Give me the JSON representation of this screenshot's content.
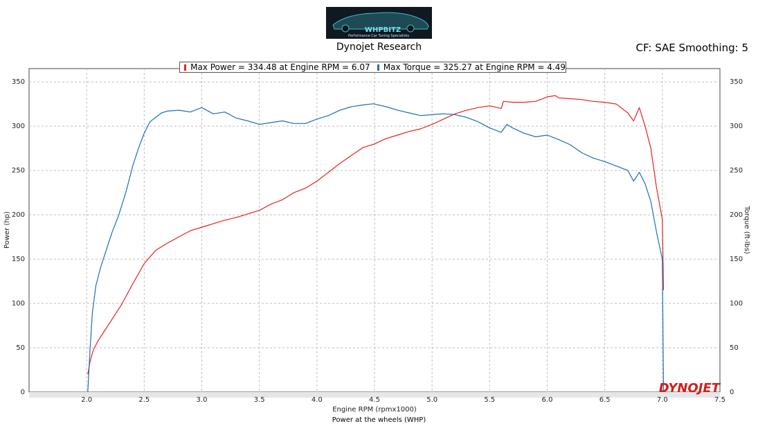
{
  "header": {
    "title": "Dynojet Research",
    "cf_text": "CF: SAE Smoothing: 5",
    "logo_text": "WHPBITZ",
    "logo_tagline": "Performance Car Tuning Specialists"
  },
  "footer": {
    "caption": "Power at the wheels (WHP)",
    "brand": "DYNOJET"
  },
  "colors": {
    "power": "#e8201e",
    "torque": "#1a6fb5",
    "grid": "#bdbdbd",
    "plot_bg": "#ffffff"
  },
  "chart_data": {
    "type": "line",
    "xlabel": "Engine RPM (rpmx1000)",
    "ylabel": "Power (hp)",
    "y2label": "Torque (ft-lbs)",
    "xlim": [
      1.5,
      7.5
    ],
    "ylim": [
      0,
      365
    ],
    "y2lim": [
      0,
      365
    ],
    "xticks": [
      "2.0",
      "2.5",
      "3.0",
      "3.5",
      "4.0",
      "4.5",
      "5.0",
      "5.5",
      "6.0",
      "6.5",
      "7.0",
      "7.5"
    ],
    "yticks": [
      "0",
      "50",
      "100",
      "150",
      "200",
      "250",
      "300",
      "350"
    ],
    "grid": true,
    "legend": [
      {
        "text": "Max Power = 334.48 at Engine RPM = 6.07"
      },
      {
        "text": "Max Torque = 325.27 at Engine RPM = 4.49"
      }
    ],
    "series": [
      {
        "x": [
          2.01,
          2.03,
          2.06,
          2.1,
          2.15,
          2.2,
          2.3,
          2.4,
          2.5,
          2.6,
          2.7,
          2.8,
          2.9,
          3.0,
          3.1,
          3.2,
          3.3,
          3.4,
          3.5,
          3.6,
          3.7,
          3.8,
          3.9,
          4.0,
          4.1,
          4.2,
          4.3,
          4.4,
          4.5,
          4.6,
          4.7,
          4.8,
          4.9,
          5.0,
          5.1,
          5.2,
          5.3,
          5.4,
          5.5,
          5.6,
          5.62,
          5.7,
          5.8,
          5.9,
          6.0,
          6.07,
          6.1,
          6.2,
          6.3,
          6.4,
          6.5,
          6.6,
          6.7,
          6.75,
          6.8,
          6.85,
          6.9,
          6.95,
          7.0,
          7.01
        ],
        "values": [
          20,
          35,
          48,
          58,
          68,
          78,
          98,
          122,
          145,
          160,
          168,
          175,
          182,
          186,
          190,
          194,
          197,
          201,
          205,
          212,
          217,
          225,
          230,
          238,
          248,
          258,
          267,
          276,
          280,
          286,
          290,
          294,
          297,
          302,
          308,
          314,
          318,
          321,
          323,
          320,
          328,
          327,
          327,
          328,
          333,
          334.48,
          332,
          331,
          330,
          328,
          327,
          325,
          315,
          306,
          321,
          300,
          275,
          230,
          195,
          115
        ]
      },
      {
        "x": [
          2.01,
          2.03,
          2.05,
          2.08,
          2.12,
          2.17,
          2.22,
          2.28,
          2.34,
          2.4,
          2.45,
          2.5,
          2.55,
          2.6,
          2.65,
          2.7,
          2.8,
          2.9,
          3.0,
          3.1,
          3.2,
          3.3,
          3.4,
          3.5,
          3.6,
          3.7,
          3.8,
          3.9,
          4.0,
          4.1,
          4.2,
          4.3,
          4.4,
          4.49,
          4.6,
          4.7,
          4.8,
          4.9,
          5.0,
          5.1,
          5.2,
          5.3,
          5.4,
          5.5,
          5.6,
          5.65,
          5.7,
          5.8,
          5.9,
          6.0,
          6.1,
          6.2,
          6.3,
          6.4,
          6.5,
          6.6,
          6.7,
          6.75,
          6.8,
          6.85,
          6.9,
          6.95,
          7.0,
          7.01
        ],
        "values": [
          0,
          50,
          90,
          120,
          140,
          160,
          180,
          200,
          225,
          255,
          275,
          292,
          305,
          310,
          315,
          317,
          318,
          316,
          321,
          314,
          316,
          309,
          306,
          302,
          304,
          306,
          303,
          303,
          308,
          312,
          318,
          322,
          324,
          325.27,
          322,
          318,
          315,
          312,
          313,
          314,
          313,
          310,
          305,
          298,
          293,
          302,
          298,
          292,
          288,
          290,
          285,
          279,
          270,
          264,
          260,
          255,
          250,
          238,
          248,
          235,
          215,
          180,
          150,
          2
        ]
      }
    ]
  }
}
